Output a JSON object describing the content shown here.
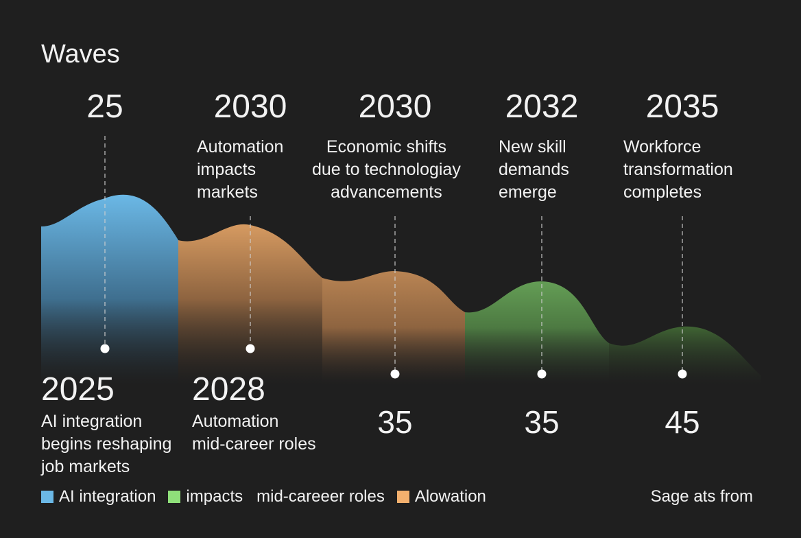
{
  "chart_data": {
    "type": "area",
    "title": "Waves",
    "segments": [
      {
        "name": "AI integration",
        "color": "#6bb8e6",
        "top_year": "25",
        "top_label": "",
        "bottom_year": "2025",
        "bottom_label": "AI integration\nbegins reshaping\njob markets",
        "bottom_value": ""
      },
      {
        "name": "Automation",
        "color": "#f3b06e",
        "top_year": "2030",
        "top_label": "Automation\nimpacts\nmarkets",
        "bottom_year": "2028",
        "bottom_label": "Automation\nmid-career roles",
        "bottom_value": ""
      },
      {
        "name": "Economic shifts",
        "color": "#f3b06e",
        "top_year": "2030",
        "top_label": "Economic shifts\ndue to technologiay\nadvancements",
        "bottom_year": "",
        "bottom_label": "",
        "bottom_value": "35"
      },
      {
        "name": "New skill",
        "color": "#8fe07a",
        "top_year": "2032",
        "top_label": "New skill\ndemands\nemerge",
        "bottom_year": "",
        "bottom_label": "",
        "bottom_value": "35"
      },
      {
        "name": "Workforce",
        "color": "#76b85e",
        "top_year": "2035",
        "top_label": "Workforce\ntransformation\ncompletes",
        "bottom_year": "",
        "bottom_label": "",
        "bottom_value": "45"
      }
    ],
    "legend": [
      {
        "label": "AI integration",
        "color": "#6bb8e6"
      },
      {
        "label": "impacts   mid-careeer roles",
        "color": "#8fe07a"
      },
      {
        "label": "Alowation",
        "color": "#f3b06e"
      }
    ],
    "source": "Sage ats from"
  }
}
